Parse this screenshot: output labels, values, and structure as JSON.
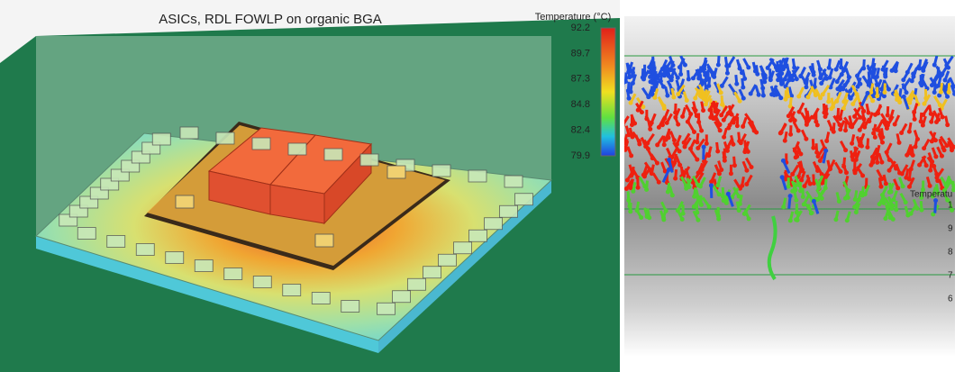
{
  "left_panel": {
    "title": "ASICs, RDL FOWLP on organic BGA",
    "color_scale": {
      "title": "Temperature (°C)",
      "ticks": [
        92.2,
        89.7,
        87.3,
        84.8,
        82.4,
        79.9
      ]
    }
  },
  "right_panel": {
    "legend_title": "Temperatu",
    "legend_labels": [
      "1",
      "9",
      "8",
      "7",
      "6"
    ]
  }
}
